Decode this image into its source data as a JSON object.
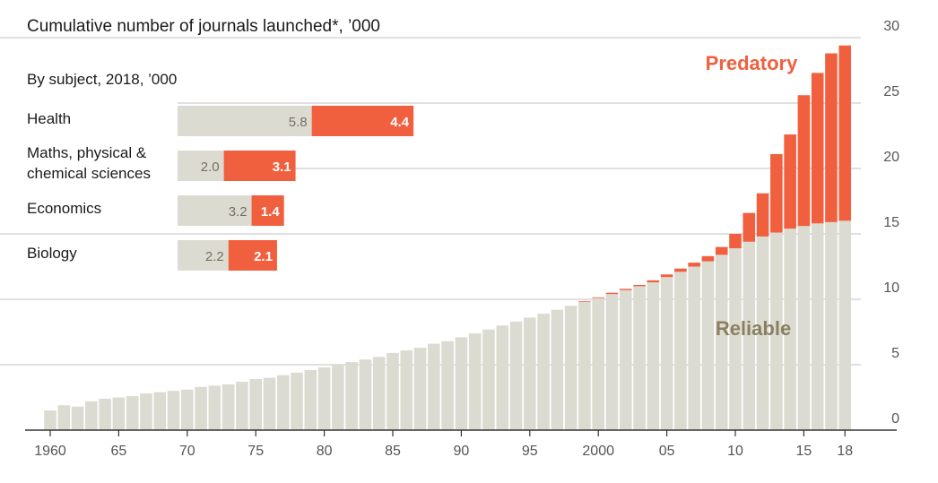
{
  "chart_data": [
    {
      "type": "bar",
      "stacked": true,
      "title": "Cumulative number of journals launched*, ’000",
      "ylim": [
        0,
        30
      ],
      "yticks": [
        0,
        5,
        10,
        15,
        20,
        25,
        30
      ],
      "xticks": [
        "1960",
        "65",
        "70",
        "75",
        "80",
        "85",
        "90",
        "95",
        "2000",
        "05",
        "10",
        "15",
        "18"
      ],
      "years": [
        1960,
        1961,
        1962,
        1963,
        1964,
        1965,
        1966,
        1967,
        1968,
        1969,
        1970,
        1971,
        1972,
        1973,
        1974,
        1975,
        1976,
        1977,
        1978,
        1979,
        1980,
        1981,
        1982,
        1983,
        1984,
        1985,
        1986,
        1987,
        1988,
        1989,
        1990,
        1991,
        1992,
        1993,
        1994,
        1995,
        1996,
        1997,
        1998,
        1999,
        2000,
        2001,
        2002,
        2003,
        2004,
        2005,
        2006,
        2007,
        2008,
        2009,
        2010,
        2011,
        2012,
        2013,
        2014,
        2015,
        2016,
        2017,
        2018
      ],
      "series": [
        {
          "name": "Reliable",
          "color": "#dcdbd2",
          "values": [
            1.5,
            1.9,
            1.8,
            2.2,
            2.4,
            2.5,
            2.6,
            2.8,
            2.9,
            3.0,
            3.1,
            3.3,
            3.4,
            3.5,
            3.7,
            3.9,
            4.0,
            4.2,
            4.4,
            4.6,
            4.8,
            5.0,
            5.2,
            5.4,
            5.6,
            5.9,
            6.1,
            6.3,
            6.6,
            6.8,
            7.1,
            7.4,
            7.7,
            8.0,
            8.3,
            8.6,
            8.9,
            9.2,
            9.5,
            9.8,
            10.1,
            10.4,
            10.7,
            11.0,
            11.3,
            11.7,
            12.1,
            12.5,
            12.9,
            13.4,
            13.9,
            14.4,
            14.8,
            15.1,
            15.4,
            15.6,
            15.8,
            15.9,
            16.0
          ]
        },
        {
          "name": "Predatory",
          "color": "#f0603f",
          "values": [
            0,
            0,
            0,
            0,
            0,
            0,
            0,
            0,
            0,
            0,
            0,
            0,
            0,
            0,
            0,
            0,
            0,
            0,
            0,
            0,
            0,
            0,
            0,
            0,
            0,
            0,
            0,
            0,
            0,
            0,
            0,
            0,
            0,
            0,
            0,
            0,
            0,
            0,
            0,
            0.05,
            0.05,
            0.1,
            0.1,
            0.1,
            0.15,
            0.2,
            0.25,
            0.3,
            0.4,
            0.6,
            1.1,
            2.2,
            3.3,
            6.0,
            7.2,
            10.0,
            11.5,
            12.9,
            13.4
          ]
        }
      ],
      "labels": {
        "reliable": "Reliable",
        "predatory": "Predatory"
      }
    },
    {
      "type": "bar",
      "orientation": "horizontal",
      "stacked": true,
      "title": "By subject, 2018, ’000",
      "categories": [
        "Health",
        "Maths, physical & chemical sciences",
        "Economics",
        "Biology"
      ],
      "category_lines": [
        [
          "Health"
        ],
        [
          "Maths, physical &",
          "chemical sciences"
        ],
        [
          "Economics"
        ],
        [
          "Biology"
        ]
      ],
      "series": [
        {
          "name": "Reliable",
          "color": "#dcdbd2",
          "values": [
            5.8,
            2.0,
            3.2,
            2.2
          ],
          "labels": [
            "5.8",
            "2.0",
            "3.2",
            "2.2"
          ]
        },
        {
          "name": "Predatory",
          "color": "#f0603f",
          "values": [
            4.4,
            3.1,
            1.4,
            2.1
          ],
          "labels": [
            "4.4",
            "3.1",
            "1.4",
            "2.1"
          ]
        }
      ]
    }
  ]
}
